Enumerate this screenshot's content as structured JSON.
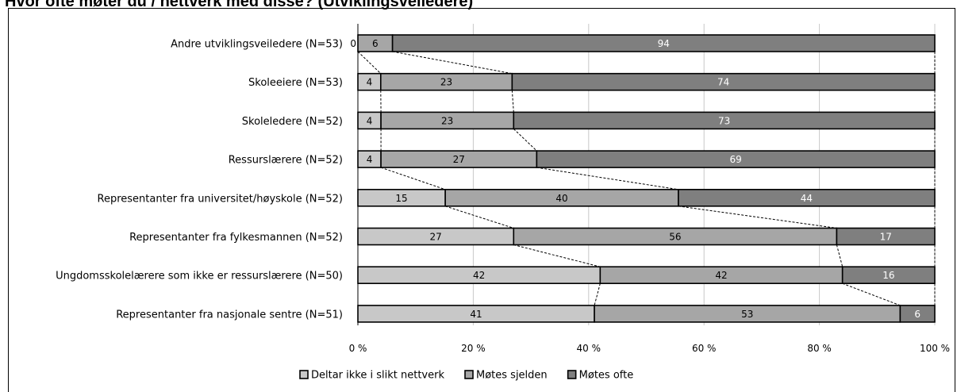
{
  "title": "Hvor ofte møter du / nettverk med disse? (Utviklingsveiledere)",
  "chart_data": {
    "type": "bar",
    "orientation": "horizontal",
    "stacked": true,
    "categories": [
      "Andre utviklingsveiledere (N=53)",
      "Skoleeiere (N=53)",
      "Skoleledere (N=52)",
      "Ressurslærere (N=52)",
      "Representanter fra universitet/høyskole (N=52)",
      "Representanter fra fylkesmannen (N=52)",
      "Ungdomsskolelærere som ikke er ressurslærere (N=50)",
      "Representanter fra nasjonale sentre (N=51)"
    ],
    "series": [
      {
        "name": "Deltar ikke i slikt nettverk",
        "color": "#c8c8c8",
        "values": [
          0,
          4,
          4,
          4,
          15,
          27,
          42,
          41
        ]
      },
      {
        "name": "Møtes sjelden",
        "color": "#a6a6a6",
        "values": [
          6,
          23,
          23,
          27,
          40,
          56,
          42,
          53
        ]
      },
      {
        "name": "Møtes ofte",
        "color": "#7f7f7f",
        "values": [
          94,
          74,
          73,
          69,
          44,
          17,
          16,
          6
        ]
      }
    ],
    "x_ticks": [
      "0 %",
      "20 %",
      "40 %",
      "60 %",
      "80 %",
      "100 %"
    ],
    "xlim": [
      0,
      100
    ],
    "grid": true,
    "legend": "bottom",
    "series_lines": "dashed"
  }
}
